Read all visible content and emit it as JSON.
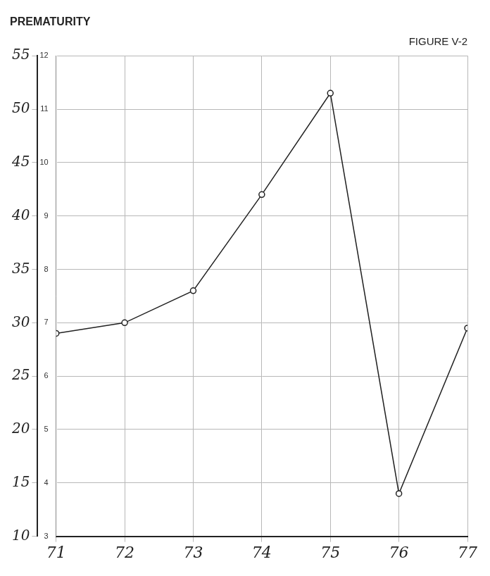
{
  "chart_data": {
    "type": "line",
    "title": "PREMATURITY",
    "subtitle": "FIGURE V-2",
    "categories": [
      "71",
      "72",
      "73",
      "74",
      "75",
      "76",
      "77"
    ],
    "values": [
      29,
      30,
      33,
      42,
      51.5,
      14,
      29.5
    ],
    "color": "#222222",
    "marker": "circle",
    "line_style": "solid",
    "ylim": [
      10,
      55
    ],
    "yticks": [
      10,
      15,
      20,
      25,
      30,
      35,
      40,
      45,
      50,
      55
    ],
    "y2lim": [
      3,
      12
    ],
    "y2ticks": [
      3,
      4,
      5,
      6,
      7,
      8,
      9,
      10,
      11,
      12
    ],
    "grid": true
  }
}
